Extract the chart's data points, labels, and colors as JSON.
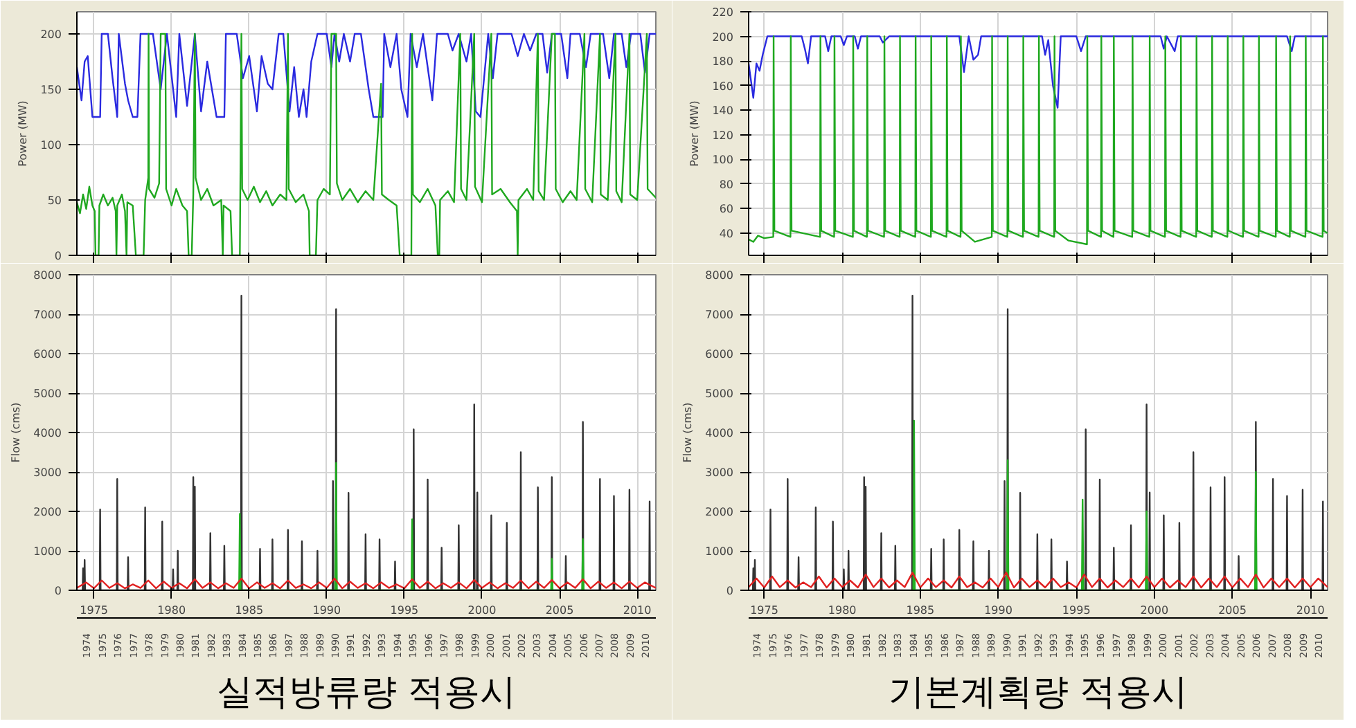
{
  "chart_data": [
    {
      "type": "line",
      "ylabel": "Power (MW)",
      "xlim": [
        1973.9,
        2011.2
      ],
      "xticks": [
        {
          "value": 1975,
          "label": null
        },
        {
          "value": 1980,
          "label": null
        },
        {
          "value": 1985,
          "label": null
        },
        {
          "value": 1990,
          "label": null
        },
        {
          "value": 1995,
          "label": null
        },
        {
          "value": 2000,
          "label": null
        },
        {
          "value": 2005,
          "label": null
        },
        {
          "value": 2010,
          "label": null
        }
      ],
      "ylim": [
        0,
        220
      ],
      "yticks": [
        0,
        50,
        100,
        150,
        200
      ],
      "grid": true,
      "tick_labels": "y",
      "line_style": "solid",
      "series": [
        {
          "color": "#2a2ae0",
          "x": [
            1973.9,
            1974.2,
            1974.4,
            1974.6,
            1974.9,
            1975.4,
            1975.5,
            1975.9,
            1976.2,
            1976.5,
            1976.6,
            1977.0,
            1977.2,
            1977.5,
            1977.8,
            1978.0,
            1978.8,
            1979.3,
            1979.7,
            1980.3,
            1980.5,
            1981.0,
            1981.5,
            1981.9,
            1982.3,
            1982.9,
            1983.4,
            1983.5,
            1984.2,
            1984.6,
            1985.0,
            1985.5,
            1985.8,
            1986.2,
            1986.5,
            1986.9,
            1987.2,
            1987.6,
            1987.9,
            1988.2,
            1988.5,
            1988.7,
            1989.0,
            1989.4,
            1990.0,
            1990.3,
            1990.5,
            1990.8,
            1991.1,
            1991.5,
            1991.8,
            1992.2,
            1992.7,
            1993.0,
            1993.6,
            1993.7,
            1994.1,
            1994.5,
            1994.8,
            1995.2,
            1995.4,
            1995.8,
            1996.2,
            1996.8,
            1997.1,
            1997.8,
            1998.1,
            1998.5,
            1999.0,
            1999.3,
            1999.6,
            1999.9,
            2000.4,
            2000.7,
            2001.0,
            2001.9,
            2002.3,
            2002.7,
            2003.1,
            2003.5,
            2003.9,
            2004.2,
            2004.5,
            2005.1,
            2005.5,
            2005.7,
            2006.3,
            2006.7,
            2007.0,
            2007.8,
            2008.2,
            2008.5,
            2009.0,
            2009.3,
            2009.6,
            2010.2,
            2010.5,
            2010.8,
            2011.2
          ],
          "values": [
            170,
            140,
            175,
            180,
            125,
            125,
            200,
            200,
            160,
            125,
            200,
            155,
            140,
            125,
            125,
            200,
            200,
            150,
            200,
            125,
            200,
            135,
            200,
            130,
            175,
            125,
            125,
            200,
            200,
            160,
            180,
            130,
            180,
            155,
            150,
            200,
            200,
            130,
            170,
            125,
            150,
            125,
            175,
            200,
            200,
            170,
            200,
            175,
            200,
            175,
            200,
            200,
            150,
            125,
            125,
            200,
            170,
            200,
            150,
            125,
            200,
            170,
            200,
            140,
            200,
            200,
            185,
            200,
            175,
            200,
            130,
            125,
            200,
            160,
            200,
            200,
            180,
            200,
            185,
            200,
            200,
            165,
            200,
            200,
            160,
            200,
            200,
            170,
            200,
            200,
            160,
            200,
            200,
            170,
            200,
            200,
            165,
            200,
            200
          ]
        },
        {
          "color": "#1fa81f",
          "x": [
            1973.9,
            1974.1,
            1974.3,
            1974.5,
            1974.7,
            1974.9,
            1975.05,
            1975.1,
            1975.3,
            1975.35,
            1975.6,
            1975.9,
            1976.2,
            1976.4,
            1976.45,
            1976.5,
            1976.8,
            1977.0,
            1977.1,
            1977.15,
            1977.5,
            1977.7,
            1978.2,
            1978.3,
            1978.5,
            1978.52,
            1978.55,
            1978.9,
            1979.2,
            1979.3,
            1979.6,
            1979.65,
            1980.0,
            1980.3,
            1980.7,
            1981.0,
            1981.1,
            1981.3,
            1981.4,
            1981.5,
            1981.55,
            1981.9,
            1982.3,
            1982.7,
            1983.2,
            1983.3,
            1983.35,
            1983.8,
            1983.9,
            1984.4,
            1984.5,
            1984.55,
            1984.9,
            1985.3,
            1985.7,
            1986.1,
            1986.5,
            1987.0,
            1987.4,
            1987.5,
            1987.55,
            1988.0,
            1988.5,
            1988.85,
            1988.9,
            1989.3,
            1989.4,
            1989.8,
            1990.2,
            1990.3,
            1990.6,
            1990.65,
            1991.0,
            1991.5,
            1992.0,
            1992.5,
            1993.0,
            1993.5,
            1993.55,
            1994.0,
            1994.5,
            1994.7,
            1995.45,
            1995.5,
            1995.55,
            1996.0,
            1996.5,
            1997.0,
            1997.15,
            1997.25,
            1997.3,
            1997.8,
            1998.2,
            1998.6,
            1998.65,
            1999.0,
            1999.5,
            1999.55,
            2000.0,
            2000.6,
            2000.65,
            2001.2,
            2001.8,
            2002.25,
            2002.3,
            2002.35,
            2002.9,
            2003.3,
            2003.6,
            2003.65,
            2004.0,
            2004.5,
            2004.7,
            2004.75,
            2005.2,
            2005.7,
            2006.1,
            2006.6,
            2006.65,
            2007.1,
            2007.6,
            2007.65,
            2008.1,
            2008.6,
            2008.65,
            2009.0,
            2009.5,
            2009.55,
            2010.0,
            2010.62,
            2010.67,
            2011.2
          ],
          "values": [
            48,
            38,
            55,
            42,
            62,
            45,
            40,
            0,
            0,
            45,
            55,
            45,
            52,
            40,
            0,
            45,
            55,
            40,
            0,
            48,
            45,
            0,
            0,
            50,
            70,
            200,
            60,
            52,
            65,
            200,
            200,
            60,
            45,
            60,
            45,
            40,
            0,
            0,
            55,
            200,
            70,
            50,
            60,
            45,
            50,
            0,
            45,
            40,
            0,
            0,
            200,
            60,
            50,
            62,
            48,
            58,
            45,
            55,
            50,
            200,
            60,
            48,
            55,
            40,
            0,
            0,
            50,
            60,
            55,
            200,
            200,
            65,
            50,
            60,
            48,
            58,
            50,
            155,
            55,
            50,
            45,
            0,
            0,
            200,
            55,
            48,
            60,
            45,
            0,
            0,
            50,
            58,
            48,
            200,
            60,
            50,
            200,
            62,
            48,
            200,
            55,
            60,
            48,
            40,
            0,
            50,
            60,
            50,
            200,
            58,
            50,
            200,
            200,
            60,
            48,
            58,
            50,
            200,
            60,
            48,
            200,
            55,
            50,
            200,
            58,
            48,
            200,
            55,
            50,
            200,
            60,
            52
          ]
        }
      ]
    },
    {
      "type": "line",
      "ylabel": "Power (MW)",
      "xlim": [
        1974.0,
        2011.1
      ],
      "xticks": [
        {
          "value": 1975,
          "label": null
        },
        {
          "value": 1980,
          "label": null
        },
        {
          "value": 1985,
          "label": null
        },
        {
          "value": 1990,
          "label": null
        },
        {
          "value": 1995,
          "label": null
        },
        {
          "value": 2000,
          "label": null
        },
        {
          "value": 2005,
          "label": null
        },
        {
          "value": 2010,
          "label": null
        }
      ],
      "ylim": [
        22,
        220
      ],
      "yticks": [
        40,
        60,
        80,
        100,
        120,
        140,
        160,
        180,
        200,
        220
      ],
      "grid": true,
      "tick_labels": "y",
      "line_style": "solid",
      "series": [
        {
          "color": "#2a2ae0",
          "x": [
            1974.0,
            1974.3,
            1974.5,
            1974.7,
            1974.9,
            1975.2,
            1977.4,
            1977.6,
            1977.8,
            1978.0,
            1978.9,
            1979.1,
            1979.3,
            1979.9,
            1980.1,
            1980.3,
            1980.8,
            1981.0,
            1981.2,
            1982.4,
            1982.6,
            1983.0,
            1987.5,
            1987.8,
            1988.1,
            1988.4,
            1988.7,
            1988.9,
            1992.8,
            1993.0,
            1993.2,
            1993.5,
            1993.8,
            1994.0,
            1995.0,
            1995.3,
            1995.6,
            2000.4,
            2000.6,
            2000.8,
            2001.3,
            2001.5,
            2008.5,
            2008.8,
            2009.0,
            2011.1
          ],
          "values": [
            178,
            150,
            178,
            172,
            185,
            200,
            200,
            190,
            178,
            200,
            200,
            188,
            200,
            200,
            193,
            200,
            200,
            190,
            200,
            200,
            195,
            200,
            200,
            171,
            200,
            181,
            185,
            200,
            200,
            185,
            197,
            160,
            142,
            200,
            200,
            188,
            200,
            200,
            190,
            200,
            188,
            200,
            200,
            188,
            200,
            200
          ]
        },
        {
          "color": "#1fa81f",
          "x": [
            1974.0,
            1974.3,
            1974.6,
            1975.0,
            1975.58,
            1975.6,
            1975.65,
            1976.68,
            1976.7,
            1976.75,
            1978.58,
            1978.6,
            1978.65,
            1979.48,
            1979.5,
            1979.55,
            1980.68,
            1980.7,
            1980.75,
            1981.58,
            1981.6,
            1981.65,
            1982.68,
            1982.7,
            1982.75,
            1983.68,
            1983.7,
            1983.75,
            1984.68,
            1984.7,
            1984.75,
            1985.68,
            1985.7,
            1985.75,
            1986.68,
            1986.7,
            1986.75,
            1987.58,
            1987.6,
            1987.65,
            1988.5,
            1989.58,
            1989.6,
            1989.65,
            1990.58,
            1990.6,
            1990.65,
            1991.58,
            1991.6,
            1991.65,
            1992.58,
            1992.6,
            1992.65,
            1993.58,
            1993.6,
            1993.65,
            1994.5,
            1995.68,
            1995.7,
            1995.75,
            1996.58,
            1996.6,
            1996.65,
            1997.38,
            1997.4,
            1997.45,
            1998.58,
            1998.6,
            1998.65,
            1999.68,
            1999.7,
            1999.75,
            2000.68,
            2000.7,
            2000.75,
            2001.68,
            2001.7,
            2001.75,
            2002.68,
            2002.7,
            2002.75,
            2003.68,
            2003.7,
            2003.75,
            2004.68,
            2004.7,
            2004.75,
            2005.68,
            2005.7,
            2005.75,
            2006.68,
            2006.7,
            2006.75,
            2007.78,
            2007.8,
            2007.85,
            2008.68,
            2008.7,
            2008.75,
            2009.68,
            2009.7,
            2009.75,
            2010.78,
            2010.8,
            2010.85,
            2011.1
          ],
          "values": [
            35,
            33,
            38,
            36,
            37,
            200,
            42,
            37,
            200,
            42,
            37,
            200,
            42,
            37,
            200,
            42,
            37,
            200,
            42,
            37,
            200,
            42,
            37,
            200,
            42,
            37,
            200,
            42,
            37,
            200,
            42,
            37,
            200,
            42,
            37,
            200,
            42,
            37,
            200,
            42,
            33,
            37,
            200,
            42,
            37,
            200,
            42,
            37,
            200,
            42,
            37,
            200,
            42,
            37,
            200,
            42,
            34,
            31,
            200,
            42,
            37,
            200,
            42,
            37,
            200,
            42,
            37,
            200,
            42,
            37,
            200,
            42,
            37,
            200,
            42,
            37,
            200,
            42,
            37,
            200,
            42,
            37,
            200,
            42,
            37,
            200,
            42,
            37,
            200,
            42,
            37,
            200,
            42,
            37,
            200,
            42,
            37,
            200,
            42,
            37,
            200,
            42,
            37,
            200,
            42,
            40
          ]
        }
      ]
    },
    {
      "type": "line",
      "ylabel": "Flow (cms)",
      "xlim": [
        1973.9,
        2011.2
      ],
      "xticks": [
        1975,
        1980,
        1985,
        1990,
        1995,
        2000,
        2005,
        2010
      ],
      "ylim": [
        0,
        8000
      ],
      "yticks": [
        0,
        1000,
        2000,
        3000,
        4000,
        5000,
        6000,
        7000,
        8000
      ],
      "grid": true,
      "line_style": "solid",
      "x2ticks": [
        {
          "value": 1974.5,
          "label": "1974"
        },
        {
          "value": 1975.5,
          "label": "1975"
        },
        {
          "value": 1976.5,
          "label": "1976"
        },
        {
          "value": 1977.5,
          "label": "1977"
        },
        {
          "value": 1978.5,
          "label": "1978"
        },
        {
          "value": 1979.5,
          "label": "1979"
        },
        {
          "value": 1980.5,
          "label": "1980"
        },
        {
          "value": 1981.5,
          "label": "1981"
        },
        {
          "value": 1982.5,
          "label": "1982"
        },
        {
          "value": 1983.5,
          "label": "1983"
        },
        {
          "value": 1984.5,
          "label": "1984"
        },
        {
          "value": 1985.5,
          "label": "1985"
        },
        {
          "value": 1986.5,
          "label": "1986"
        },
        {
          "value": 1987.5,
          "label": "1987"
        },
        {
          "value": 1988.5,
          "label": "1988"
        },
        {
          "value": 1989.5,
          "label": "1989"
        },
        {
          "value": 1990.5,
          "label": "1990"
        },
        {
          "value": 1991.5,
          "label": "1991"
        },
        {
          "value": 1992.5,
          "label": "1992"
        },
        {
          "value": 1993.5,
          "label": "1993"
        },
        {
          "value": 1994.5,
          "label": "1994"
        },
        {
          "value": 1995.5,
          "label": "1995"
        },
        {
          "value": 1996.5,
          "label": "1996"
        },
        {
          "value": 1997.5,
          "label": "1997"
        },
        {
          "value": 1998.5,
          "label": "1998"
        },
        {
          "value": 1999.5,
          "label": "1999"
        },
        {
          "value": 2000.5,
          "label": "2000"
        },
        {
          "value": 2001.5,
          "label": "2001"
        },
        {
          "value": 2002.5,
          "label": "2002"
        },
        {
          "value": 2003.5,
          "label": "2003"
        },
        {
          "value": 2004.5,
          "label": "2004"
        },
        {
          "value": 2005.5,
          "label": "2005"
        },
        {
          "value": 2006.5,
          "label": "2006"
        },
        {
          "value": 2007.5,
          "label": "2007"
        },
        {
          "value": 2008.5,
          "label": "2008"
        },
        {
          "value": 2009.5,
          "label": "2009"
        },
        {
          "value": 2010.5,
          "label": "2010"
        }
      ],
      "annotations": [
        "실적방류량 적용시"
      ],
      "x2lim": [
        1973.9,
        2011.2
      ],
      "series": [
        {
          "color": "#333333",
          "x": [
            1974.27,
            1974.3,
            1974.33,
            1974.37,
            1974.4,
            1974.43,
            1975.37,
            1975.4,
            1975.43,
            1976.47,
            1976.5,
            1976.53,
            1977.17,
            1977.2,
            1977.23,
            1978.27,
            1978.3,
            1978.33,
            1979.37,
            1979.4,
            1979.43,
            1980.07,
            1980.1,
            1980.13,
            1980.37,
            1980.4,
            1980.43,
            1981.37,
            1981.4,
            1981.43,
            1981.47,
            1981.5,
            1981.53,
            1982.47,
            1982.5,
            1982.53,
            1983.37,
            1983.4,
            1983.43,
            1984.47,
            1984.5,
            1984.53,
            1985.67,
            1985.7,
            1985.73,
            1986.47,
            1986.5,
            1986.53,
            1987.47,
            1987.5,
            1987.53,
            1988.37,
            1988.4,
            1988.43,
            1989.37,
            1989.4,
            1989.43,
            1990.37,
            1990.4,
            1990.43,
            1990.57,
            1990.6,
            1990.63,
            1991.37,
            1991.4,
            1991.43,
            1992.47,
            1992.5,
            1992.53,
            1993.37,
            1993.4,
            1993.43,
            1994.37,
            1994.4,
            1994.43,
            1995.57,
            1995.6,
            1995.63,
            1996.47,
            1996.5,
            1996.53,
            1997.37,
            1997.4,
            1997.43,
            1998.47,
            1998.5,
            1998.53,
            1999.47,
            1999.5,
            1999.53,
            1999.67,
            1999.7,
            1999.73,
            2000.57,
            2000.6,
            2000.63,
            2001.57,
            2001.6,
            2001.63,
            2002.47,
            2002.5,
            2002.53,
            2003.57,
            2003.6,
            2003.63,
            2004.47,
            2004.5,
            2004.53,
            2005.37,
            2005.4,
            2005.43,
            2006.47,
            2006.5,
            2006.53,
            2007.57,
            2007.6,
            2007.63,
            2008.47,
            2008.5,
            2008.53,
            2009.47,
            2009.5,
            2009.53,
            2010.77,
            2010.8,
            2010.83
          ],
          "values": [
            0,
            560,
            0,
            0,
            770,
            0,
            0,
            2050,
            0,
            0,
            2820,
            0,
            0,
            840,
            0,
            0,
            2100,
            0,
            0,
            1740,
            0,
            0,
            530,
            0,
            0,
            1000,
            0,
            0,
            2870,
            0,
            0,
            2630,
            0,
            0,
            1450,
            0,
            0,
            1130,
            0,
            0,
            7470,
            0,
            0,
            1050,
            0,
            0,
            1290,
            0,
            0,
            1530,
            0,
            0,
            1240,
            0,
            0,
            1000,
            0,
            0,
            2770,
            0,
            0,
            7130,
            0,
            0,
            2470,
            0,
            0,
            1420,
            0,
            0,
            1290,
            0,
            0,
            730,
            0,
            0,
            4080,
            0,
            0,
            2810,
            0,
            0,
            1080,
            0,
            0,
            1650,
            0,
            0,
            4710,
            0,
            0,
            2480,
            0,
            0,
            1900,
            0,
            0,
            1710,
            0,
            0,
            3500,
            0,
            0,
            2610,
            0,
            0,
            2870,
            0,
            0,
            870,
            0,
            0,
            4270,
            0,
            0,
            2820,
            0,
            0,
            2390,
            0,
            0,
            2550,
            0,
            0,
            2250,
            0
          ]
        },
        {
          "color": "#22b022",
          "x": [
            1984.35,
            1984.4,
            1984.45,
            1990.55,
            1990.6,
            1990.65,
            1995.45,
            1995.5,
            1995.55,
            2004.45,
            2004.5,
            2004.55,
            2006.45,
            2006.5,
            2006.55
          ],
          "values": [
            0,
            1940,
            0,
            0,
            3230,
            0,
            0,
            1800,
            0,
            0,
            800,
            0,
            0,
            1300,
            0
          ]
        },
        {
          "color": "#e02020",
          "x": [
            1973.9,
            1974.5,
            1975.0,
            1975.5,
            1976.0,
            1976.5,
            1977.0,
            1977.5,
            1978.0,
            1978.5,
            1979.0,
            1979.5,
            1980.0,
            1980.5,
            1981.0,
            1981.5,
            1982.0,
            1982.5,
            1983.0,
            1983.5,
            1984.0,
            1984.5,
            1985.0,
            1985.5,
            1986.0,
            1986.5,
            1987.0,
            1987.5,
            1988.0,
            1988.5,
            1989.0,
            1989.5,
            1990.0,
            1990.5,
            1991.0,
            1991.5,
            1992.0,
            1992.5,
            1993.0,
            1993.5,
            1994.0,
            1994.5,
            1995.0,
            1995.5,
            1996.0,
            1996.5,
            1997.0,
            1997.5,
            1998.0,
            1998.5,
            1999.0,
            1999.5,
            2000.0,
            2000.5,
            2001.0,
            2001.5,
            2002.0,
            2002.5,
            2003.0,
            2003.5,
            2004.0,
            2004.5,
            2005.0,
            2005.5,
            2006.0,
            2006.5,
            2007.0,
            2007.5,
            2008.0,
            2008.5,
            2009.0,
            2009.5,
            2010.0,
            2010.5,
            2011.2
          ],
          "values": [
            60,
            200,
            50,
            250,
            60,
            180,
            50,
            150,
            60,
            250,
            50,
            220,
            60,
            180,
            50,
            280,
            60,
            200,
            50,
            180,
            60,
            300,
            50,
            200,
            60,
            180,
            50,
            250,
            60,
            150,
            50,
            200,
            60,
            300,
            50,
            220,
            60,
            180,
            50,
            200,
            60,
            150,
            50,
            280,
            60,
            220,
            50,
            180,
            60,
            200,
            50,
            260,
            60,
            200,
            50,
            180,
            60,
            250,
            50,
            220,
            60,
            260,
            50,
            200,
            60,
            280,
            50,
            220,
            60,
            200,
            50,
            220,
            60,
            200,
            60
          ]
        }
      ]
    },
    {
      "type": "line",
      "ylabel": "Flow (cms)",
      "xlim": [
        1974.0,
        2011.1
      ],
      "xticks": [
        1975,
        1980,
        1985,
        1990,
        1995,
        2000,
        2005,
        2010
      ],
      "ylim": [
        0,
        8000
      ],
      "yticks": [
        0,
        1000,
        2000,
        3000,
        4000,
        5000,
        6000,
        7000,
        8000
      ],
      "grid": true,
      "line_style": "solid",
      "x2ticks": [
        {
          "value": 1974.5,
          "label": "1974"
        },
        {
          "value": 1975.5,
          "label": "1975"
        },
        {
          "value": 1976.5,
          "label": "1976"
        },
        {
          "value": 1977.5,
          "label": "1977"
        },
        {
          "value": 1978.5,
          "label": "1978"
        },
        {
          "value": 1979.5,
          "label": "1979"
        },
        {
          "value": 1980.5,
          "label": "1980"
        },
        {
          "value": 1981.5,
          "label": "1981"
        },
        {
          "value": 1982.5,
          "label": "1982"
        },
        {
          "value": 1983.5,
          "label": "1983"
        },
        {
          "value": 1984.5,
          "label": "1984"
        },
        {
          "value": 1985.5,
          "label": "1985"
        },
        {
          "value": 1986.5,
          "label": "1986"
        },
        {
          "value": 1987.5,
          "label": "1987"
        },
        {
          "value": 1988.5,
          "label": "1988"
        },
        {
          "value": 1989.5,
          "label": "1989"
        },
        {
          "value": 1990.5,
          "label": "1990"
        },
        {
          "value": 1991.5,
          "label": "1991"
        },
        {
          "value": 1992.5,
          "label": "1992"
        },
        {
          "value": 1993.5,
          "label": "1993"
        },
        {
          "value": 1994.5,
          "label": "1994"
        },
        {
          "value": 1995.5,
          "label": "1995"
        },
        {
          "value": 1996.5,
          "label": "1996"
        },
        {
          "value": 1997.5,
          "label": "1997"
        },
        {
          "value": 1998.5,
          "label": "1998"
        },
        {
          "value": 1999.5,
          "label": "1999"
        },
        {
          "value": 2000.5,
          "label": "2000"
        },
        {
          "value": 2001.5,
          "label": "2001"
        },
        {
          "value": 2002.5,
          "label": "2002"
        },
        {
          "value": 2003.5,
          "label": "2003"
        },
        {
          "value": 2004.5,
          "label": "2004"
        },
        {
          "value": 2005.5,
          "label": "2005"
        },
        {
          "value": 2006.5,
          "label": "2006"
        },
        {
          "value": 2007.5,
          "label": "2007"
        },
        {
          "value": 2008.5,
          "label": "2008"
        },
        {
          "value": 2009.5,
          "label": "2009"
        },
        {
          "value": 2010.5,
          "label": "2010"
        }
      ],
      "annotations": [
        "기본계획량 적용시"
      ],
      "x2lim": [
        1974.0,
        2011.1
      ],
      "series": [
        {
          "color": "#333333",
          "x": [
            1974.27,
            1974.3,
            1974.33,
            1974.37,
            1974.4,
            1974.43,
            1975.37,
            1975.4,
            1975.43,
            1976.47,
            1976.5,
            1976.53,
            1977.17,
            1977.2,
            1977.23,
            1978.27,
            1978.3,
            1978.33,
            1979.37,
            1979.4,
            1979.43,
            1980.07,
            1980.1,
            1980.13,
            1980.37,
            1980.4,
            1980.43,
            1981.37,
            1981.4,
            1981.43,
            1981.47,
            1981.5,
            1981.53,
            1982.47,
            1982.5,
            1982.53,
            1983.37,
            1983.4,
            1983.43,
            1984.47,
            1984.5,
            1984.53,
            1985.67,
            1985.7,
            1985.73,
            1986.47,
            1986.5,
            1986.53,
            1987.47,
            1987.5,
            1987.53,
            1988.37,
            1988.4,
            1988.43,
            1989.37,
            1989.4,
            1989.43,
            1990.37,
            1990.4,
            1990.43,
            1990.57,
            1990.6,
            1990.63,
            1991.37,
            1991.4,
            1991.43,
            1992.47,
            1992.5,
            1992.53,
            1993.37,
            1993.4,
            1993.43,
            1994.37,
            1994.4,
            1994.43,
            1995.57,
            1995.6,
            1995.63,
            1996.47,
            1996.5,
            1996.53,
            1997.37,
            1997.4,
            1997.43,
            1998.47,
            1998.5,
            1998.53,
            1999.47,
            1999.5,
            1999.53,
            1999.67,
            1999.7,
            1999.73,
            2000.57,
            2000.6,
            2000.63,
            2001.57,
            2001.6,
            2001.63,
            2002.47,
            2002.5,
            2002.53,
            2003.57,
            2003.6,
            2003.63,
            2004.47,
            2004.5,
            2004.53,
            2005.37,
            2005.4,
            2005.43,
            2006.47,
            2006.5,
            2006.53,
            2007.57,
            2007.6,
            2007.63,
            2008.47,
            2008.5,
            2008.53,
            2009.47,
            2009.5,
            2009.53,
            2010.77,
            2010.8,
            2010.83
          ],
          "values": [
            0,
            560,
            0,
            0,
            770,
            0,
            0,
            2050,
            0,
            0,
            2820,
            0,
            0,
            840,
            0,
            0,
            2100,
            0,
            0,
            1740,
            0,
            0,
            530,
            0,
            0,
            1000,
            0,
            0,
            2870,
            0,
            0,
            2630,
            0,
            0,
            1450,
            0,
            0,
            1130,
            0,
            0,
            7470,
            0,
            0,
            1050,
            0,
            0,
            1290,
            0,
            0,
            1530,
            0,
            0,
            1240,
            0,
            0,
            1000,
            0,
            0,
            2770,
            0,
            0,
            7130,
            0,
            0,
            2470,
            0,
            0,
            1420,
            0,
            0,
            1290,
            0,
            0,
            730,
            0,
            0,
            4080,
            0,
            0,
            2810,
            0,
            0,
            1080,
            0,
            0,
            1650,
            0,
            0,
            4710,
            0,
            0,
            2480,
            0,
            0,
            1900,
            0,
            0,
            1710,
            0,
            0,
            3500,
            0,
            0,
            2610,
            0,
            0,
            2870,
            0,
            0,
            870,
            0,
            0,
            4270,
            0,
            0,
            2820,
            0,
            0,
            2390,
            0,
            0,
            2550,
            0,
            0,
            2250,
            0
          ]
        },
        {
          "color": "#22b022",
          "x": [
            1984.55,
            1984.6,
            1984.65,
            1990.55,
            1990.6,
            1990.65,
            1995.35,
            1995.4,
            1995.45,
            1999.45,
            1999.5,
            1999.55,
            2006.45,
            2006.5,
            2006.55
          ],
          "values": [
            0,
            4300,
            0,
            0,
            3300,
            0,
            0,
            2300,
            0,
            0,
            2000,
            0,
            0,
            3000,
            0
          ]
        },
        {
          "color": "#e02020",
          "x": [
            1974.0,
            1974.5,
            1975.0,
            1975.5,
            1976.0,
            1976.5,
            1977.0,
            1977.5,
            1978.0,
            1978.5,
            1979.0,
            1979.5,
            1980.0,
            1980.5,
            1981.0,
            1981.5,
            1982.0,
            1982.5,
            1983.0,
            1983.5,
            1984.0,
            1984.5,
            1985.0,
            1985.5,
            1986.0,
            1986.5,
            1987.0,
            1987.5,
            1988.0,
            1988.5,
            1989.0,
            1989.5,
            1990.0,
            1990.5,
            1991.0,
            1991.5,
            1992.0,
            1992.5,
            1993.0,
            1993.5,
            1994.0,
            1994.5,
            1995.0,
            1995.5,
            1996.0,
            1996.5,
            1997.0,
            1997.5,
            1998.0,
            1998.5,
            1999.0,
            1999.5,
            2000.0,
            2000.5,
            2001.0,
            2001.5,
            2002.0,
            2002.5,
            2003.0,
            2003.5,
            2004.0,
            2004.5,
            2005.0,
            2005.5,
            2006.0,
            2006.5,
            2007.0,
            2007.5,
            2008.0,
            2008.5,
            2009.0,
            2009.5,
            2010.0,
            2010.5,
            2011.1
          ],
          "values": [
            80,
            300,
            70,
            350,
            80,
            250,
            70,
            200,
            80,
            350,
            70,
            300,
            80,
            250,
            70,
            400,
            80,
            300,
            70,
            250,
            80,
            450,
            70,
            300,
            80,
            250,
            70,
            350,
            80,
            200,
            70,
            300,
            80,
            450,
            70,
            300,
            80,
            250,
            70,
            300,
            80,
            200,
            70,
            400,
            80,
            300,
            70,
            250,
            80,
            300,
            70,
            350,
            80,
            300,
            70,
            250,
            80,
            350,
            70,
            300,
            80,
            350,
            70,
            300,
            80,
            400,
            70,
            300,
            80,
            300,
            70,
            300,
            80,
            300,
            80
          ]
        }
      ]
    }
  ]
}
